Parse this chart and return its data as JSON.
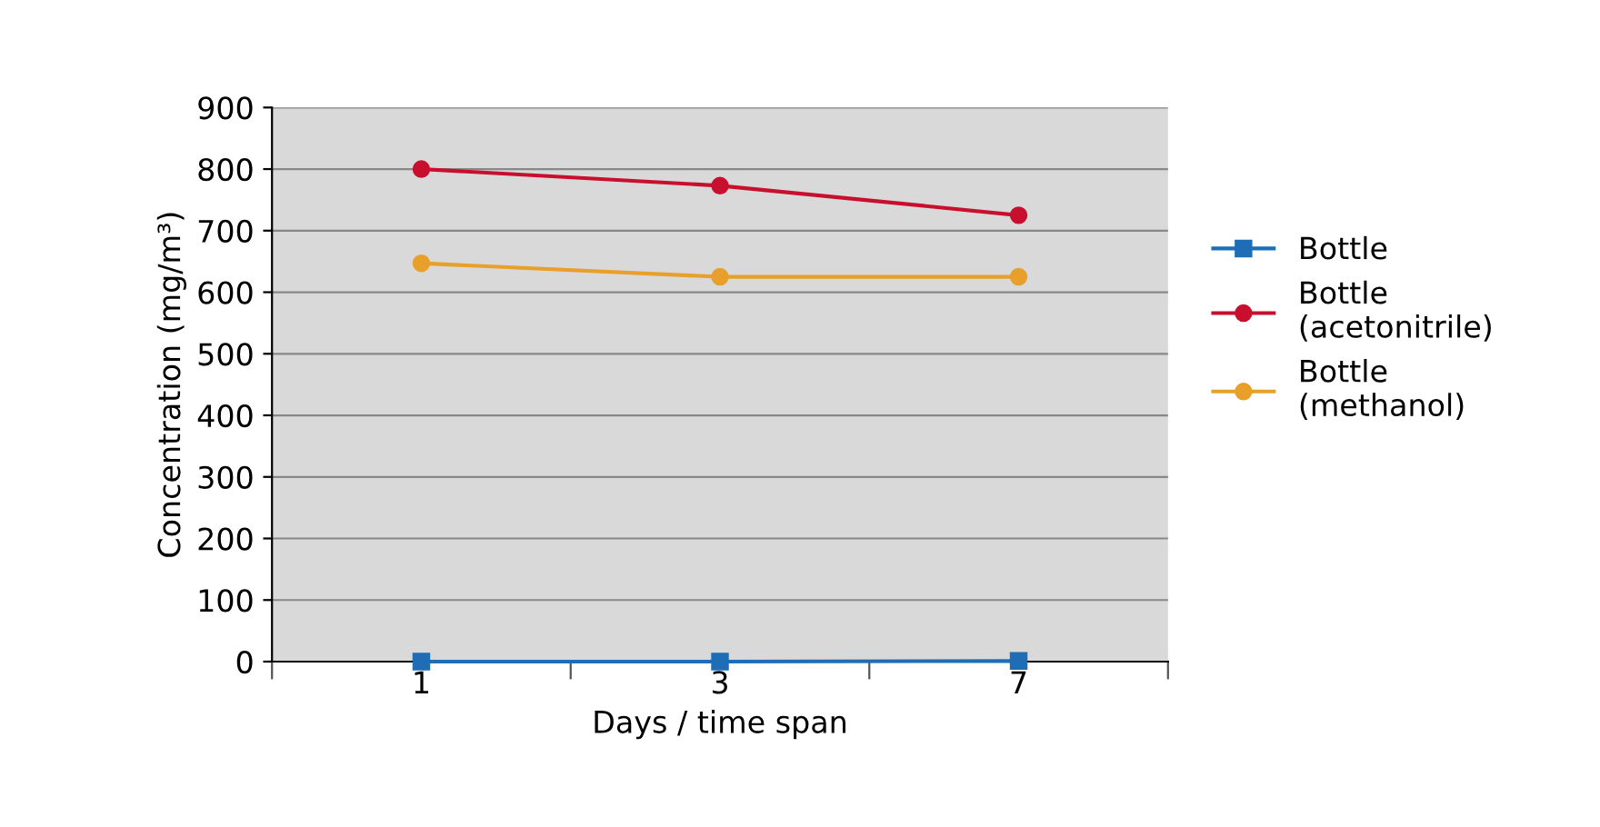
{
  "chart_data": {
    "type": "line",
    "xlabel": "Days / time span",
    "ylabel": "Concentration (mg/m³)",
    "categories": [
      "1",
      "3",
      "7"
    ],
    "series": [
      {
        "name": "Bottle",
        "color": "#1f6db5",
        "marker": "square",
        "values": [
          0,
          0,
          1
        ]
      },
      {
        "name": "Bottle\n(acetonitrile)",
        "color": "#c8102e",
        "marker": "circle",
        "values": [
          800,
          773,
          725
        ]
      },
      {
        "name": "Bottle\n(methanol)",
        "color": "#e8a02a",
        "marker": "circle",
        "values": [
          647,
          625,
          625
        ]
      }
    ],
    "ylim": [
      0,
      900
    ],
    "yticks": [
      0,
      100,
      200,
      300,
      400,
      500,
      600,
      700,
      800,
      900
    ],
    "grid": "y",
    "legend": "right",
    "line_style": "solid"
  }
}
